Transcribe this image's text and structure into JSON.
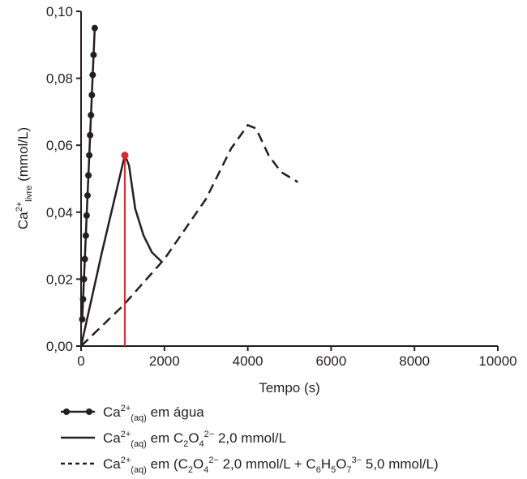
{
  "chart_data": {
    "type": "line",
    "ylabel": [
      {
        "text": "Ca"
      },
      {
        "sup": "2+"
      },
      {
        "sub": "livre"
      },
      {
        "text": " (mmol/L)"
      }
    ],
    "xlabel": "Tempo (s)",
    "xlim": [
      0,
      10000
    ],
    "xticks": [
      0,
      2000,
      4000,
      6000,
      8000,
      10000
    ],
    "ylim": [
      0,
      0.1
    ],
    "yticks": [
      {
        "value": 0,
        "label": "0,00"
      },
      {
        "value": 0.02,
        "label": "0,02"
      },
      {
        "value": 0.04,
        "label": "0,04"
      },
      {
        "value": 0.06,
        "label": "0,06"
      },
      {
        "value": 0.08,
        "label": "0,08"
      },
      {
        "value": 0.1,
        "label": "0,10"
      }
    ],
    "highlight": {
      "series": 1,
      "point": 2,
      "color": "#e8262a"
    },
    "series": [
      {
        "name": [
          {
            "text": "Ca"
          },
          {
            "sup": "2+"
          },
          {
            "sub": "(aq)"
          },
          {
            "text": " em água"
          }
        ],
        "color": "#231f20",
        "style": "solid",
        "marker": "circle",
        "x": [
          28,
          48,
          69,
          90,
          114,
          134,
          155,
          176,
          197,
          217,
          238,
          259,
          279,
          300,
          328
        ],
        "values": [
          0.008,
          0.014,
          0.02,
          0.026,
          0.033,
          0.039,
          0.045,
          0.051,
          0.057,
          0.063,
          0.069,
          0.075,
          0.081,
          0.087,
          0.095
        ]
      },
      {
        "name": [
          {
            "text": "Ca"
          },
          {
            "sup": "2+"
          },
          {
            "sub": "(aq)"
          },
          {
            "text": " em C"
          },
          {
            "sub": "2"
          },
          {
            "text": "O"
          },
          {
            "sub": "4"
          },
          {
            "sup": "2−"
          },
          {
            "text": " 2,0 mmol/L"
          }
        ],
        "color": "#231f20",
        "style": "solid",
        "x": [
          0,
          500,
          1050,
          1150,
          1300,
          1500,
          1700,
          1950
        ],
        "values": [
          0,
          0.028,
          0.057,
          0.054,
          0.041,
          0.033,
          0.028,
          0.025
        ]
      },
      {
        "name": [
          {
            "text": "Ca"
          },
          {
            "sup": "2+"
          },
          {
            "sub": "(aq)"
          },
          {
            "text": " em (C"
          },
          {
            "sub": "2"
          },
          {
            "text": "O"
          },
          {
            "sub": "4"
          },
          {
            "sup": "2−"
          },
          {
            "text": " 2,0 mmol/L + C"
          },
          {
            "sub": "6"
          },
          {
            "text": "H"
          },
          {
            "sub": "5"
          },
          {
            "text": "O"
          },
          {
            "sub": "7"
          },
          {
            "sup": "3−"
          },
          {
            "text": " 5,0 mmol/L)"
          }
        ],
        "color": "#231f20",
        "style": "dashed",
        "x": [
          0,
          1000,
          2000,
          3000,
          3600,
          4000,
          4200,
          4500,
          4800,
          5200
        ],
        "values": [
          0,
          0.012,
          0.026,
          0.044,
          0.059,
          0.066,
          0.065,
          0.057,
          0.052,
          0.049
        ]
      }
    ]
  }
}
